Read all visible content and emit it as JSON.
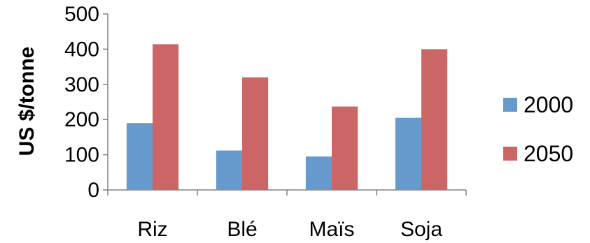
{
  "chart_data": {
    "type": "bar",
    "title": "",
    "xlabel": "",
    "ylabel": "US $/tonne",
    "categories": [
      "Riz",
      "Blé",
      "Maïs",
      "Soja"
    ],
    "series": [
      {
        "name": "2000",
        "color": "#6699CC",
        "values": [
          190,
          112,
          95,
          205
        ]
      },
      {
        "name": "2050",
        "color": "#CC6666",
        "values": [
          414,
          320,
          237,
          400
        ]
      }
    ],
    "ylim": [
      0,
      500
    ],
    "yticks": [
      "0",
      "100",
      "200",
      "300",
      "400",
      "500"
    ],
    "grid": false,
    "legend_position": "right"
  }
}
